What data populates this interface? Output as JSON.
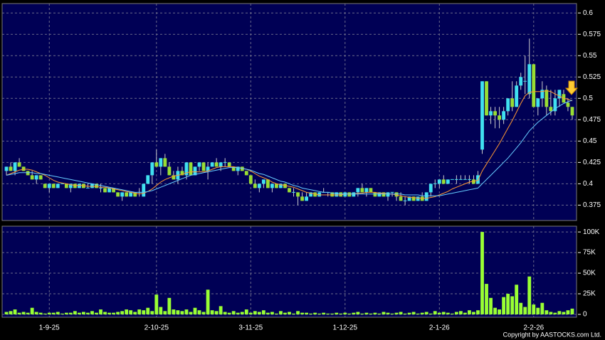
{
  "chart_data": {
    "type": "candlestick",
    "xlim": [
      -1,
      133
    ],
    "xticks": [
      {
        "value": 10,
        "label": "1-9-25"
      },
      {
        "value": 35,
        "label": "2-10-25"
      },
      {
        "value": 57,
        "label": "3-11-25"
      },
      {
        "value": 79,
        "label": "1-12-25"
      },
      {
        "value": 101,
        "label": "2-1-26"
      },
      {
        "value": 123,
        "label": "2-2-26"
      }
    ],
    "ylim": [
      0.357,
      0.611
    ],
    "yticks": [
      0.375,
      0.4,
      0.425,
      0.45,
      0.475,
      0.5,
      0.525,
      0.55,
      0.575,
      0.6
    ],
    "grid": true,
    "up_color": "#40e0f0",
    "down_color": "#99dd33",
    "ohlc": [
      [
        0.415,
        0.42,
        0.41,
        0.42
      ],
      [
        0.42,
        0.425,
        0.415,
        0.415
      ],
      [
        0.415,
        0.425,
        0.41,
        0.425
      ],
      [
        0.425,
        0.43,
        0.42,
        0.42
      ],
      [
        0.42,
        0.42,
        0.415,
        0.415
      ],
      [
        0.415,
        0.415,
        0.41,
        0.41
      ],
      [
        0.41,
        0.415,
        0.405,
        0.405
      ],
      [
        0.405,
        0.41,
        0.4,
        0.41
      ],
      [
        0.41,
        0.41,
        0.405,
        0.405
      ],
      [
        0.4,
        0.4,
        0.395,
        0.395
      ],
      [
        0.395,
        0.4,
        0.39,
        0.4
      ],
      [
        0.4,
        0.4,
        0.395,
        0.395
      ],
      [
        0.395,
        0.4,
        0.395,
        0.4
      ],
      [
        0.4,
        0.4,
        0.4,
        0.4
      ],
      [
        0.4,
        0.4,
        0.395,
        0.395
      ],
      [
        0.395,
        0.4,
        0.39,
        0.4
      ],
      [
        0.4,
        0.4,
        0.395,
        0.395
      ],
      [
        0.395,
        0.4,
        0.395,
        0.4
      ],
      [
        0.4,
        0.4,
        0.395,
        0.395
      ],
      [
        0.395,
        0.4,
        0.395,
        0.395
      ],
      [
        0.395,
        0.4,
        0.395,
        0.4
      ],
      [
        0.4,
        0.4,
        0.395,
        0.395
      ],
      [
        0.395,
        0.4,
        0.39,
        0.395
      ],
      [
        0.395,
        0.395,
        0.39,
        0.39
      ],
      [
        0.39,
        0.395,
        0.39,
        0.395
      ],
      [
        0.395,
        0.395,
        0.39,
        0.39
      ],
      [
        0.39,
        0.39,
        0.385,
        0.385
      ],
      [
        0.385,
        0.39,
        0.38,
        0.39
      ],
      [
        0.39,
        0.39,
        0.385,
        0.385
      ],
      [
        0.385,
        0.39,
        0.385,
        0.39
      ],
      [
        0.39,
        0.39,
        0.385,
        0.385
      ],
      [
        0.39,
        0.395,
        0.385,
        0.39
      ],
      [
        0.385,
        0.4,
        0.385,
        0.4
      ],
      [
        0.4,
        0.41,
        0.4,
        0.41
      ],
      [
        0.41,
        0.425,
        0.4,
        0.425
      ],
      [
        0.425,
        0.44,
        0.42,
        0.42
      ],
      [
        0.42,
        0.43,
        0.41,
        0.43
      ],
      [
        0.43,
        0.435,
        0.42,
        0.42
      ],
      [
        0.42,
        0.425,
        0.41,
        0.41
      ],
      [
        0.41,
        0.415,
        0.405,
        0.405
      ],
      [
        0.405,
        0.42,
        0.4,
        0.415
      ],
      [
        0.415,
        0.42,
        0.41,
        0.41
      ],
      [
        0.41,
        0.425,
        0.405,
        0.425
      ],
      [
        0.425,
        0.425,
        0.41,
        0.41
      ],
      [
        0.41,
        0.42,
        0.41,
        0.42
      ],
      [
        0.42,
        0.425,
        0.415,
        0.425
      ],
      [
        0.425,
        0.425,
        0.415,
        0.415
      ],
      [
        0.415,
        0.425,
        0.405,
        0.42
      ],
      [
        0.42,
        0.425,
        0.42,
        0.425
      ],
      [
        0.425,
        0.43,
        0.42,
        0.42
      ],
      [
        0.42,
        0.425,
        0.415,
        0.425
      ],
      [
        0.425,
        0.43,
        0.42,
        0.425
      ],
      [
        0.425,
        0.425,
        0.42,
        0.42
      ],
      [
        0.42,
        0.42,
        0.415,
        0.415
      ],
      [
        0.415,
        0.42,
        0.41,
        0.42
      ],
      [
        0.42,
        0.42,
        0.415,
        0.415
      ],
      [
        0.415,
        0.415,
        0.41,
        0.41
      ],
      [
        0.41,
        0.41,
        0.4,
        0.4
      ],
      [
        0.4,
        0.405,
        0.395,
        0.395
      ],
      [
        0.395,
        0.4,
        0.39,
        0.4
      ],
      [
        0.4,
        0.405,
        0.395,
        0.405
      ],
      [
        0.405,
        0.405,
        0.395,
        0.395
      ],
      [
        0.395,
        0.4,
        0.39,
        0.4
      ],
      [
        0.4,
        0.4,
        0.395,
        0.395
      ],
      [
        0.395,
        0.4,
        0.395,
        0.4
      ],
      [
        0.4,
        0.4,
        0.395,
        0.395
      ],
      [
        0.395,
        0.395,
        0.39,
        0.39
      ],
      [
        0.39,
        0.395,
        0.385,
        0.39
      ],
      [
        0.39,
        0.39,
        0.375,
        0.385
      ],
      [
        0.385,
        0.39,
        0.38,
        0.38
      ],
      [
        0.38,
        0.39,
        0.38,
        0.385
      ],
      [
        0.385,
        0.39,
        0.385,
        0.39
      ],
      [
        0.39,
        0.39,
        0.385,
        0.385
      ],
      [
        0.385,
        0.39,
        0.385,
        0.39
      ],
      [
        0.39,
        0.395,
        0.39,
        0.39
      ],
      [
        0.39,
        0.39,
        0.385,
        0.39
      ],
      [
        0.39,
        0.39,
        0.385,
        0.385
      ],
      [
        0.385,
        0.39,
        0.385,
        0.39
      ],
      [
        0.39,
        0.39,
        0.385,
        0.385
      ],
      [
        0.385,
        0.39,
        0.385,
        0.39
      ],
      [
        0.39,
        0.39,
        0.385,
        0.385
      ],
      [
        0.385,
        0.39,
        0.385,
        0.39
      ],
      [
        0.39,
        0.395,
        0.385,
        0.395
      ],
      [
        0.395,
        0.4,
        0.39,
        0.39
      ],
      [
        0.39,
        0.395,
        0.385,
        0.395
      ],
      [
        0.395,
        0.395,
        0.39,
        0.39
      ],
      [
        0.39,
        0.39,
        0.385,
        0.385
      ],
      [
        0.385,
        0.39,
        0.385,
        0.39
      ],
      [
        0.39,
        0.39,
        0.385,
        0.385
      ],
      [
        0.385,
        0.39,
        0.38,
        0.39
      ],
      [
        0.39,
        0.39,
        0.385,
        0.39
      ],
      [
        0.39,
        0.39,
        0.38,
        0.385
      ],
      [
        0.385,
        0.39,
        0.38,
        0.38
      ],
      [
        0.38,
        0.385,
        0.375,
        0.38
      ],
      [
        0.38,
        0.385,
        0.38,
        0.385
      ],
      [
        0.385,
        0.385,
        0.38,
        0.38
      ],
      [
        0.38,
        0.385,
        0.38,
        0.385
      ],
      [
        0.385,
        0.39,
        0.38,
        0.38
      ],
      [
        0.38,
        0.39,
        0.38,
        0.39
      ],
      [
        0.39,
        0.4,
        0.385,
        0.4
      ],
      [
        0.4,
        0.405,
        0.395,
        0.4
      ],
      [
        0.4,
        0.405,
        0.395,
        0.405
      ],
      [
        0.405,
        0.41,
        0.4,
        0.4
      ],
      [
        0.4,
        0.405,
        0.4,
        0.405
      ],
      [
        0.405,
        0.405,
        0.405,
        0.405
      ],
      [
        0.405,
        0.41,
        0.4,
        0.405
      ],
      [
        0.405,
        0.41,
        0.405,
        0.405
      ],
      [
        0.405,
        0.41,
        0.405,
        0.405
      ],
      [
        0.405,
        0.41,
        0.4,
        0.405
      ],
      [
        0.405,
        0.41,
        0.4,
        0.4
      ],
      [
        0.4,
        0.415,
        0.4,
        0.41
      ],
      [
        0.44,
        0.52,
        0.435,
        0.52
      ],
      [
        0.52,
        0.52,
        0.48,
        0.48
      ],
      [
        0.48,
        0.49,
        0.47,
        0.485
      ],
      [
        0.485,
        0.49,
        0.465,
        0.48
      ],
      [
        0.48,
        0.49,
        0.465,
        0.475
      ],
      [
        0.475,
        0.49,
        0.47,
        0.485
      ],
      [
        0.485,
        0.5,
        0.48,
        0.5
      ],
      [
        0.5,
        0.52,
        0.485,
        0.49
      ],
      [
        0.49,
        0.52,
        0.49,
        0.515
      ],
      [
        0.515,
        0.53,
        0.51,
        0.525
      ],
      [
        0.52,
        0.55,
        0.505,
        0.52
      ],
      [
        0.505,
        0.57,
        0.5,
        0.54
      ],
      [
        0.54,
        0.54,
        0.49,
        0.49
      ],
      [
        0.49,
        0.5,
        0.48,
        0.5
      ],
      [
        0.5,
        0.52,
        0.49,
        0.51
      ],
      [
        0.51,
        0.515,
        0.48,
        0.49
      ],
      [
        0.49,
        0.51,
        0.48,
        0.485
      ],
      [
        0.485,
        0.51,
        0.48,
        0.5
      ],
      [
        0.5,
        0.51,
        0.49,
        0.51
      ],
      [
        0.505,
        0.51,
        0.495,
        0.495
      ],
      [
        0.495,
        0.5,
        0.485,
        0.49
      ],
      [
        0.49,
        0.49,
        0.475,
        0.48
      ]
    ],
    "moving_averages": [
      {
        "color": "#ff9933",
        "values": [
          0.41,
          0.412,
          0.414,
          0.416,
          0.417,
          0.417,
          0.416,
          0.414,
          0.412,
          0.41,
          0.407,
          0.404,
          0.402,
          0.401,
          0.4,
          0.399,
          0.398,
          0.398,
          0.398,
          0.397,
          0.397,
          0.397,
          0.396,
          0.396,
          0.395,
          0.394,
          0.393,
          0.392,
          0.391,
          0.39,
          0.389,
          0.388,
          0.389,
          0.391,
          0.394,
          0.398,
          0.402,
          0.405,
          0.407,
          0.409,
          0.41,
          0.411,
          0.413,
          0.414,
          0.414,
          0.414,
          0.414,
          0.415,
          0.417,
          0.419,
          0.42,
          0.42,
          0.42,
          0.42,
          0.419,
          0.418,
          0.417,
          0.415,
          0.412,
          0.409,
          0.407,
          0.405,
          0.402,
          0.4,
          0.399,
          0.398,
          0.397,
          0.396,
          0.394,
          0.392,
          0.39,
          0.389,
          0.388,
          0.387,
          0.387,
          0.387,
          0.387,
          0.387,
          0.387,
          0.388,
          0.388,
          0.388,
          0.389,
          0.389,
          0.39,
          0.39,
          0.39,
          0.389,
          0.389,
          0.388,
          0.388,
          0.387,
          0.386,
          0.385,
          0.384,
          0.384,
          0.383,
          0.383,
          0.383,
          0.384,
          0.385,
          0.387,
          0.389,
          0.391,
          0.394,
          0.396,
          0.398,
          0.4,
          0.402,
          0.403,
          0.404,
          0.415,
          0.423,
          0.431,
          0.439,
          0.447,
          0.456,
          0.465,
          0.474,
          0.484,
          0.494,
          0.503,
          0.507,
          0.508,
          0.508,
          0.508,
          0.509,
          0.508,
          0.505,
          0.503,
          0.5,
          0.499,
          0.497
        ]
      },
      {
        "color": "#66ccff",
        "values": [
          0.41,
          0.411,
          0.412,
          0.413,
          0.413,
          0.413,
          0.413,
          0.412,
          0.412,
          0.411,
          0.41,
          0.409,
          0.408,
          0.407,
          0.406,
          0.405,
          0.404,
          0.403,
          0.402,
          0.401,
          0.4,
          0.399,
          0.398,
          0.397,
          0.396,
          0.395,
          0.394,
          0.393,
          0.392,
          0.391,
          0.39,
          0.39,
          0.39,
          0.391,
          0.392,
          0.394,
          0.396,
          0.398,
          0.4,
          0.402,
          0.404,
          0.406,
          0.408,
          0.41,
          0.411,
          0.412,
          0.413,
          0.414,
          0.415,
          0.416,
          0.417,
          0.418,
          0.419,
          0.419,
          0.419,
          0.418,
          0.417,
          0.416,
          0.414,
          0.412,
          0.411,
          0.409,
          0.407,
          0.405,
          0.403,
          0.402,
          0.4,
          0.398,
          0.397,
          0.395,
          0.394,
          0.393,
          0.392,
          0.391,
          0.39,
          0.39,
          0.389,
          0.389,
          0.388,
          0.388,
          0.388,
          0.388,
          0.388,
          0.388,
          0.388,
          0.388,
          0.388,
          0.388,
          0.388,
          0.388,
          0.388,
          0.388,
          0.388,
          0.387,
          0.387,
          0.387,
          0.387,
          0.386,
          0.386,
          0.386,
          0.386,
          0.386,
          0.387,
          0.388,
          0.389,
          0.39,
          0.391,
          0.392,
          0.393,
          0.394,
          0.395,
          0.4,
          0.405,
          0.41,
          0.415,
          0.42,
          0.425,
          0.43,
          0.436,
          0.442,
          0.448,
          0.455,
          0.462,
          0.467,
          0.472,
          0.476,
          0.48,
          0.484,
          0.488,
          0.491,
          0.494,
          0.496,
          0.498
        ]
      }
    ],
    "volume": {
      "color": "#99ff33",
      "ylim": [
        0,
        107000
      ],
      "yticks": [
        0,
        {
          "value": 25000,
          "label": "25K"
        },
        {
          "value": 50000,
          "label": "50K"
        },
        {
          "value": 75000,
          "label": "75K"
        },
        {
          "value": 100000,
          "label": "100K"
        }
      ],
      "values": [
        3000,
        4000,
        6000,
        2000,
        3000,
        2000,
        8000,
        3000,
        2000,
        1000,
        2000,
        2000,
        3000,
        1000,
        2000,
        2000,
        4000,
        2000,
        3000,
        2000,
        4000,
        2000,
        6000,
        3000,
        2000,
        2000,
        3000,
        4000,
        6000,
        5000,
        3000,
        6000,
        5000,
        8000,
        4000,
        24000,
        9000,
        4000,
        20000,
        6000,
        5000,
        4000,
        6000,
        3000,
        8000,
        5000,
        3000,
        30000,
        5000,
        4000,
        10000,
        3000,
        2000,
        4000,
        2000,
        3000,
        6000,
        2000,
        4000,
        3000,
        5000,
        2000,
        3000,
        1000,
        4000,
        2000,
        3000,
        1000,
        4000,
        2000,
        2000,
        1000,
        2000,
        1000,
        2000,
        1000,
        1000,
        2000,
        1000,
        2000,
        1000,
        2000,
        3000,
        1000,
        2000,
        1000,
        2000,
        1000,
        3000,
        2000,
        1000,
        2000,
        3000,
        1000,
        2000,
        3000,
        1000,
        2000,
        3000,
        1000,
        4000,
        2000,
        3000,
        2000,
        1000,
        3000,
        4000,
        2000,
        5000,
        3000,
        5000,
        100000,
        37000,
        20000,
        8000,
        6000,
        21000,
        25000,
        22000,
        36000,
        14000,
        9000,
        46000,
        12000,
        8000,
        14000,
        5000,
        3000,
        2000,
        4000,
        3000,
        5000,
        7000
      ]
    },
    "copyright": "Copyright by AASTOCKS.com Ltd."
  }
}
